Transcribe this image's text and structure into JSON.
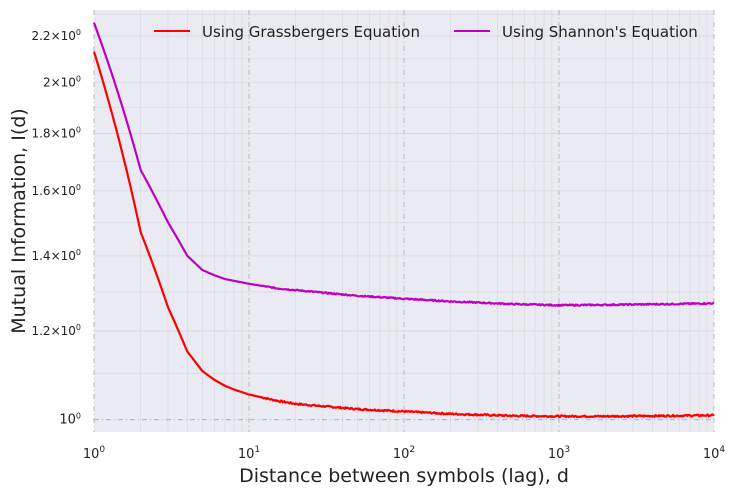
{
  "chart_data": {
    "type": "line",
    "xscale": "log",
    "yscale": "log",
    "xlabel": "Distance between symbols (lag), d",
    "ylabel": "Mutual Information, I(d)",
    "xlim": [
      1,
      10000
    ],
    "ylim": [
      0.975,
      2.32
    ],
    "x_ticks": [
      {
        "value": 1,
        "base": "10",
        "exp": "0"
      },
      {
        "value": 10,
        "base": "10",
        "exp": "1"
      },
      {
        "value": 100,
        "base": "10",
        "exp": "2"
      },
      {
        "value": 1000,
        "base": "10",
        "exp": "3"
      },
      {
        "value": 10000,
        "base": "10",
        "exp": "4"
      }
    ],
    "y_ticks": [
      {
        "value": 1.0,
        "label": "10",
        "exp": "0",
        "style": "plain"
      },
      {
        "value": 1.2,
        "label": "1.2×10",
        "exp": "0",
        "style": "sci"
      },
      {
        "value": 1.4,
        "label": "1.4×10",
        "exp": "0",
        "style": "sci"
      },
      {
        "value": 1.6,
        "label": "1.6×10",
        "exp": "0",
        "style": "sci"
      },
      {
        "value": 1.8,
        "label": "1.8×10",
        "exp": "0",
        "style": "sci"
      },
      {
        "value": 2.0,
        "label": "2×10",
        "exp": "0",
        "style": "sci"
      },
      {
        "value": 2.2,
        "label": "2.2×10",
        "exp": "0",
        "style": "sci"
      }
    ],
    "grid": true,
    "legend_position": "top",
    "series": [
      {
        "name": "Using Grassbergers Equation",
        "color": "#ff0000",
        "points": [
          [
            1,
            2.13
          ],
          [
            2,
            1.47
          ],
          [
            3,
            1.26
          ],
          [
            4,
            1.15
          ],
          [
            5,
            1.105
          ],
          [
            6,
            1.085
          ],
          [
            7,
            1.072
          ],
          [
            8,
            1.064
          ],
          [
            10,
            1.053
          ],
          [
            15,
            1.04
          ],
          [
            20,
            1.033
          ],
          [
            30,
            1.028
          ],
          [
            50,
            1.022
          ],
          [
            100,
            1.017
          ],
          [
            200,
            1.012
          ],
          [
            500,
            1.008
          ],
          [
            1000,
            1.007
          ],
          [
            2000,
            1.007
          ],
          [
            5000,
            1.008
          ],
          [
            10000,
            1.009
          ]
        ]
      },
      {
        "name": "Using Shannon's Equation",
        "color": "#c000c0",
        "points": [
          [
            1,
            2.26
          ],
          [
            2,
            1.67
          ],
          [
            3,
            1.5
          ],
          [
            4,
            1.4
          ],
          [
            5,
            1.36
          ],
          [
            6,
            1.345
          ],
          [
            7,
            1.335
          ],
          [
            8,
            1.33
          ],
          [
            10,
            1.322
          ],
          [
            15,
            1.31
          ],
          [
            20,
            1.305
          ],
          [
            30,
            1.298
          ],
          [
            50,
            1.29
          ],
          [
            100,
            1.282
          ],
          [
            200,
            1.275
          ],
          [
            500,
            1.268
          ],
          [
            1000,
            1.265
          ],
          [
            2000,
            1.266
          ],
          [
            5000,
            1.268
          ],
          [
            10000,
            1.27
          ]
        ]
      }
    ]
  }
}
